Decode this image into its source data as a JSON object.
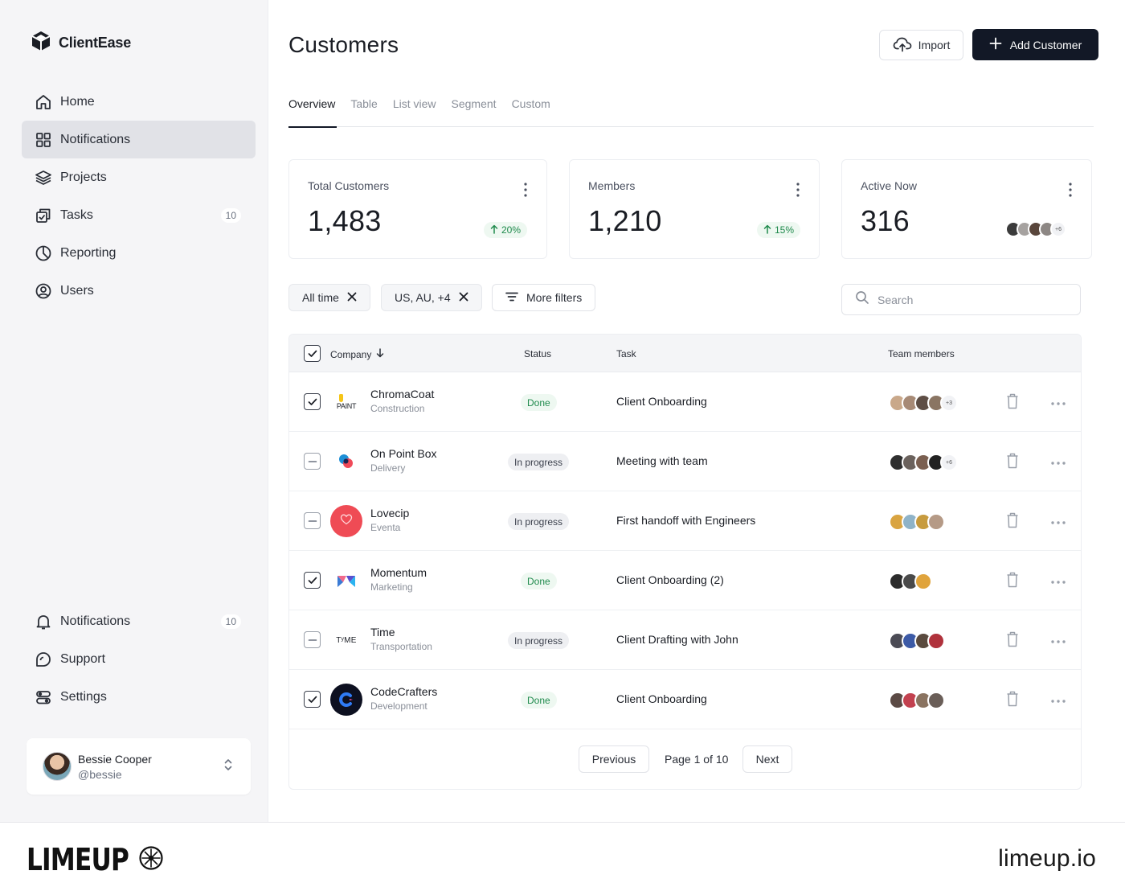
{
  "app": {
    "name": "ClientEase"
  },
  "sidebar": {
    "nav": [
      {
        "label": "Home",
        "icon": "home-icon"
      },
      {
        "label": "Notifications",
        "icon": "grid-icon",
        "active": true
      },
      {
        "label": "Projects",
        "icon": "layers-icon"
      },
      {
        "label": "Tasks",
        "icon": "tasks-icon",
        "badge": "10"
      },
      {
        "label": "Reporting",
        "icon": "pie-chart-icon"
      },
      {
        "label": "Users",
        "icon": "user-circle-icon"
      }
    ],
    "bottom_nav": [
      {
        "label": "Notifications",
        "icon": "bell-icon",
        "badge": "10"
      },
      {
        "label": "Support",
        "icon": "support-icon"
      },
      {
        "label": "Settings",
        "icon": "settings-icon"
      }
    ],
    "user": {
      "name": "Bessie Cooper",
      "handle": "@bessie"
    }
  },
  "header": {
    "title": "Customers",
    "import_label": "Import",
    "add_label": "Add Customer"
  },
  "tabs": [
    "Overview",
    "Table",
    "List view",
    "Segment",
    "Custom"
  ],
  "stats": [
    {
      "label": "Total Customers",
      "value": "1,483",
      "trend": "20%"
    },
    {
      "label": "Members",
      "value": "1,210",
      "trend": "15%"
    },
    {
      "label": "Active Now",
      "value": "316",
      "extra": "+6"
    }
  ],
  "filters": {
    "chips": [
      "All time",
      "US, AU, +4"
    ],
    "more": "More filters",
    "search_placeholder": "Search"
  },
  "table": {
    "columns": {
      "company": "Company",
      "status": "Status",
      "task": "Task",
      "members": "Team members"
    },
    "rows": [
      {
        "company": "ChromaCoat",
        "sector": "Construction",
        "status": "Done",
        "task": "Client Onboarding",
        "more": "+3",
        "checked": true,
        "logo_text": "PAINT"
      },
      {
        "company": "On Point Box",
        "sector": "Delivery",
        "status": "In progress",
        "task": "Meeting with team",
        "more": "+6",
        "checked": false
      },
      {
        "company": "Lovecip",
        "sector": "Eventa",
        "status": "In progress",
        "task": "First handoff with Engineers",
        "checked": false
      },
      {
        "company": "Momentum",
        "sector": "Marketing",
        "status": "Done",
        "task": "Client Onboarding (2)",
        "checked": true
      },
      {
        "company": "Time",
        "sector": "Transportation",
        "status": "In progress",
        "task": "Client Drafting with John",
        "checked": false,
        "logo_text": "TʸME"
      },
      {
        "company": "CodeCrafters",
        "sector": "Development",
        "status": "Done",
        "task": "Client Onboarding",
        "checked": true
      }
    ]
  },
  "pagination": {
    "prev": "Previous",
    "info": "Page 1 of 10",
    "next": "Next"
  },
  "footer": {
    "brand": "LIMEUP",
    "url": "limeup.io"
  },
  "colors": {
    "accent": "#121826",
    "done_bg": "#eef8f1",
    "done_text": "#1f8a4c",
    "sidebar_bg": "#f5f5f7"
  }
}
